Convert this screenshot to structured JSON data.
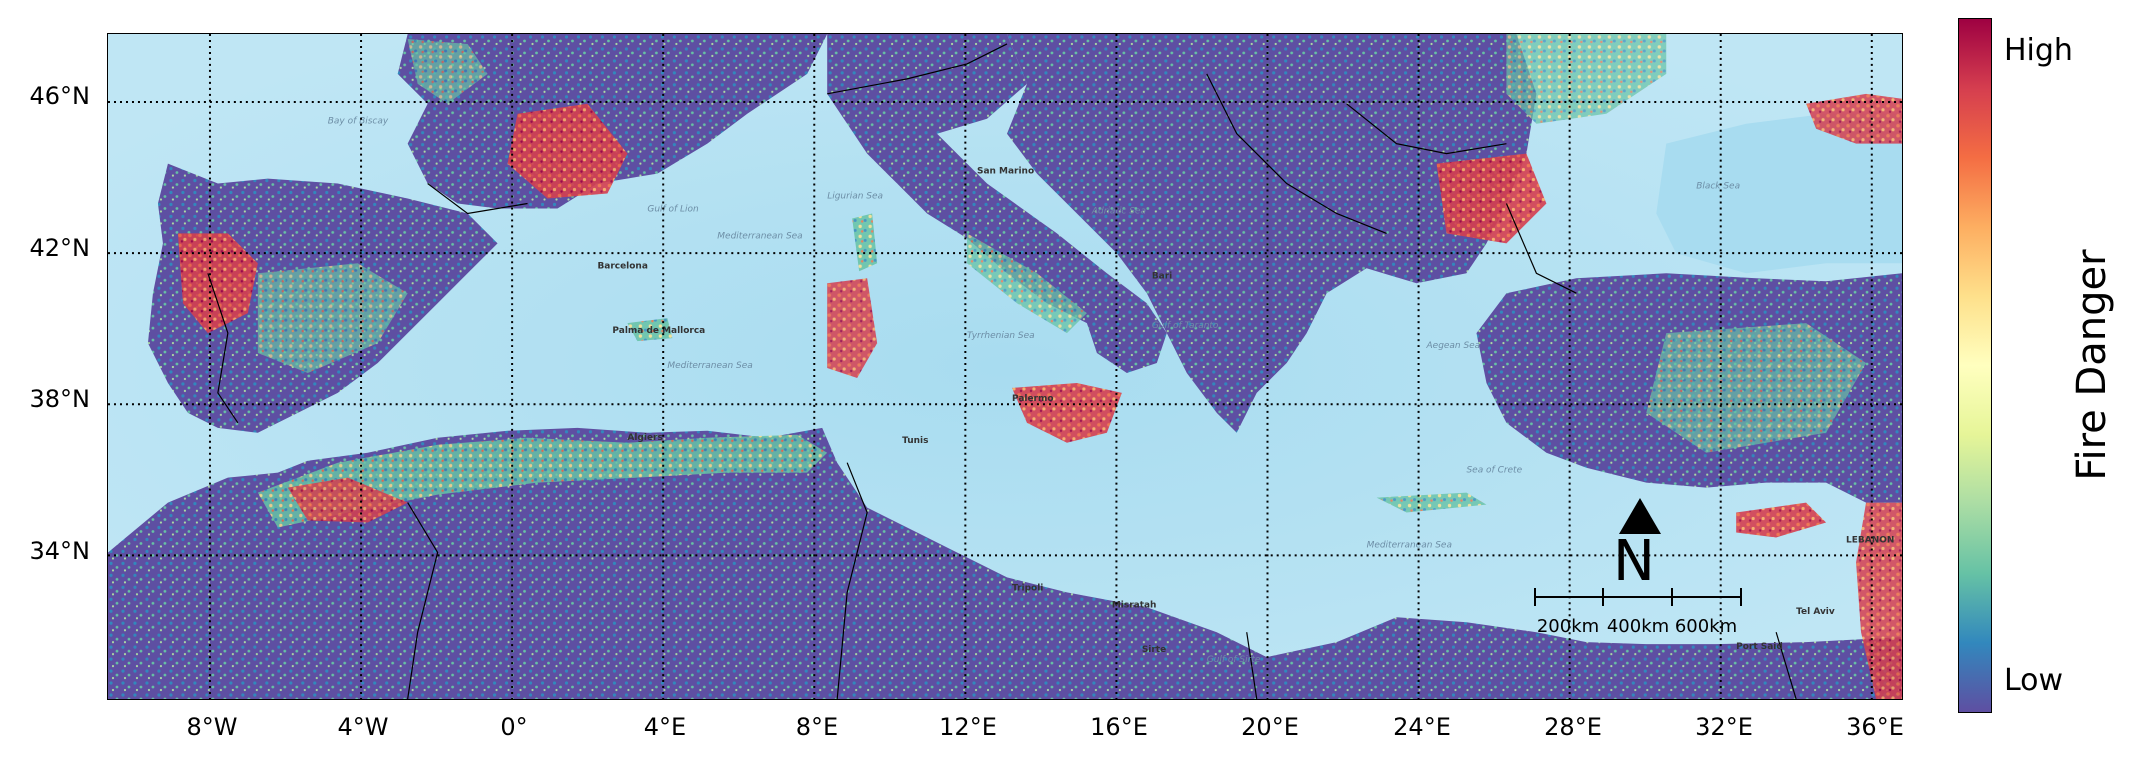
{
  "map": {
    "lat_labels": [
      "46°N",
      "42°N",
      "38°N",
      "34°N"
    ],
    "lon_labels": [
      "8°W",
      "4°W",
      "0°",
      "4°E",
      "8°E",
      "12°E",
      "16°E",
      "20°E",
      "24°E",
      "28°E",
      "32°E",
      "36°E"
    ],
    "extent_lon": [
      -10.7,
      36.8
    ],
    "extent_lat": [
      30.2,
      47.8
    ],
    "grid_style": "dotted",
    "place_labels": {
      "bay_of_biscay": "Bay of Biscay",
      "gulf_of_lion": "Gulf of Lion",
      "mediterranean_sea_w": "Mediterranean Sea",
      "ligurian_sea": "Ligurian Sea",
      "mediterranean_sea_c": "Mediterranean Sea",
      "tyrrhenian_sea": "Tyrrhenian Sea",
      "adriatic_sea": "Adriatic Sea",
      "san_marino": "San Marino",
      "barcelona": "Barcelona",
      "palma": "Palma de Mallorca",
      "algiers": "Algiers",
      "tunis": "Tunis",
      "palermo": "Palermo",
      "bari": "Bari",
      "gulf_of_taranto": "Gulf of Taranto",
      "aegean_sea": "Aegean Sea",
      "sea_of_crete": "Sea of Crete",
      "mediterranean_sea_e": "Mediterranean Sea",
      "tripoli": "Tripoli",
      "misratah": "Misratah",
      "sirte": "Sirte",
      "gulf_of_sirte": "Gulf of Sirte",
      "black_sea": "Black Sea",
      "port_said": "Port Said",
      "tel_aviv": "Tel Aviv",
      "lebanon": "LEBANON"
    }
  },
  "colorbar": {
    "title": "Fire Danger",
    "high_label": "High",
    "low_label": "Low",
    "colors": [
      "#5e4fa2",
      "#3288bd",
      "#66c2a5",
      "#abdda4",
      "#e6f598",
      "#ffffbf",
      "#fee08b",
      "#fdae61",
      "#f46d43",
      "#d53e4f",
      "#9e0142"
    ]
  },
  "north_arrow": {
    "letter": "N"
  },
  "scalebar": {
    "labels": [
      "200km",
      "400km",
      "600km"
    ]
  },
  "colors": {
    "sea": "#a8dcf0",
    "sea_shallow": "#d2eef8",
    "land_low": "#5e4fa2",
    "land_high": "#b2182b",
    "border": "#000000"
  }
}
